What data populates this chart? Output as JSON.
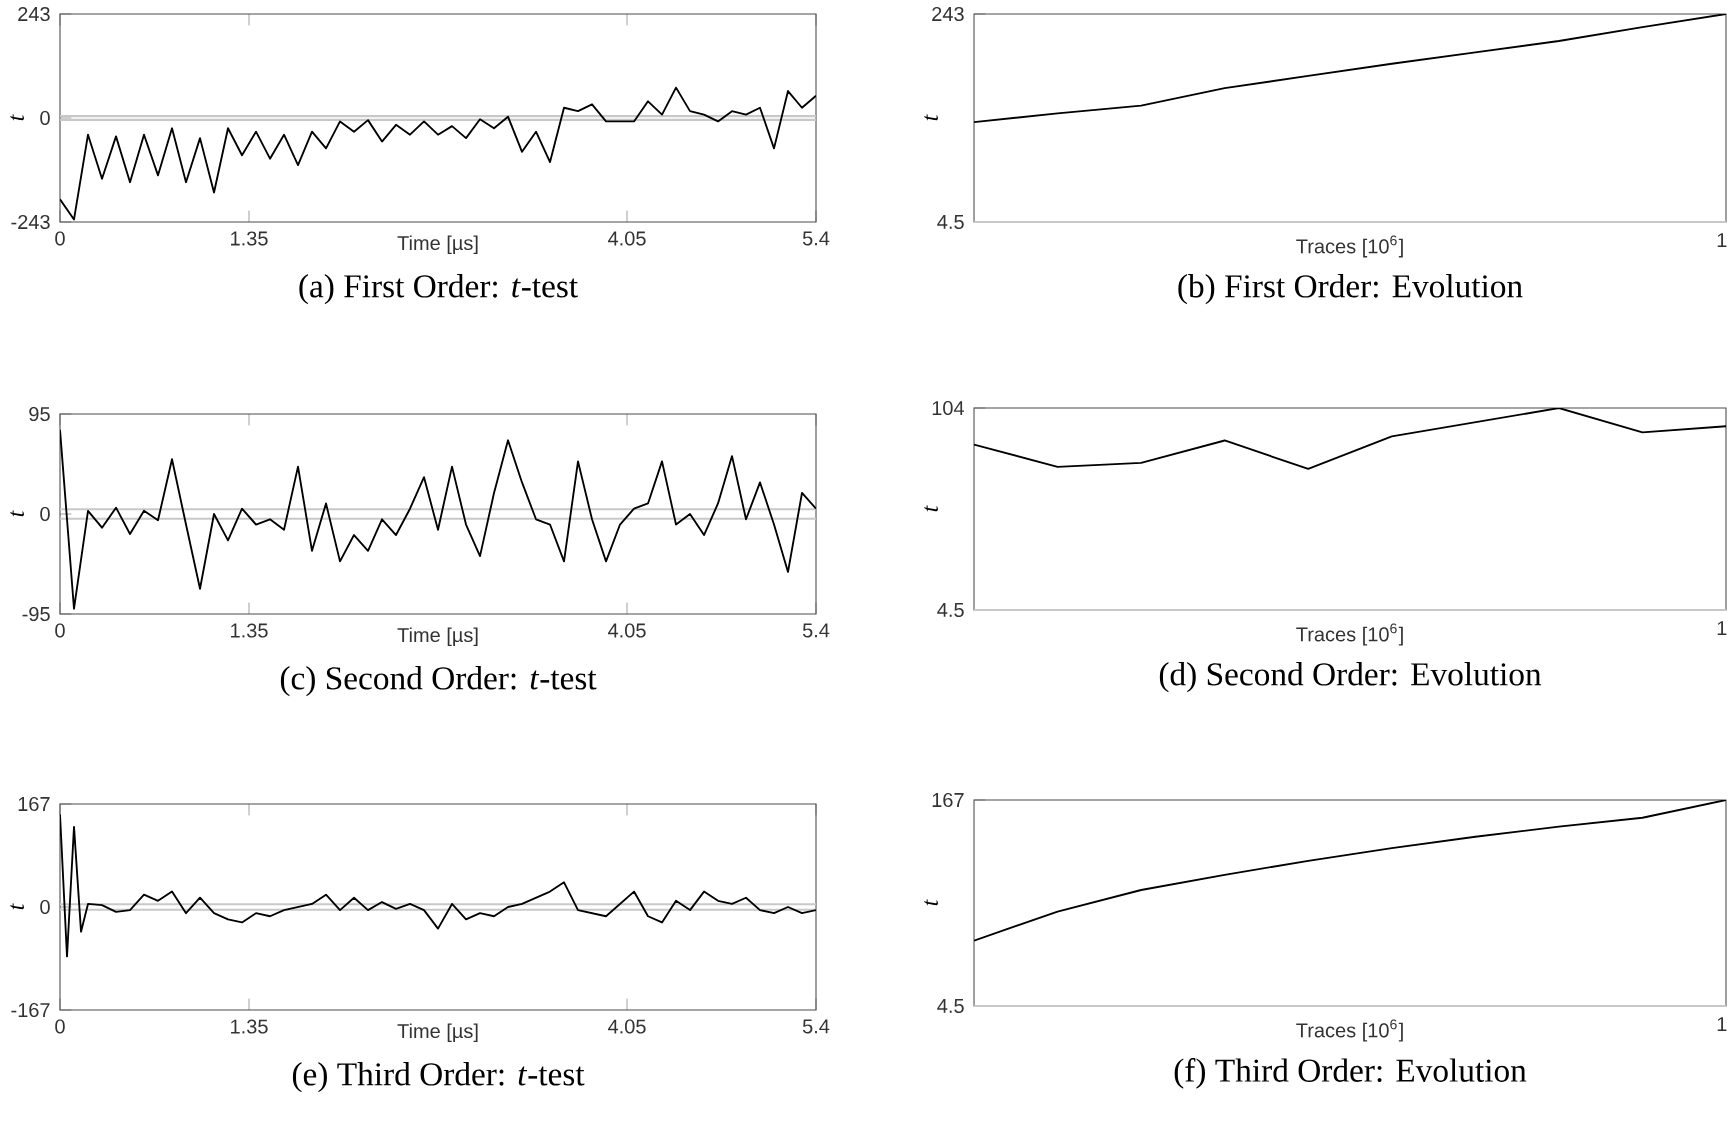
{
  "chart_data": [
    {
      "type": "line",
      "title": "(a) First Order: *t*-test",
      "xlabel": "Time [µs]",
      "ylabel": "t",
      "color": "#000000",
      "x": [
        0,
        0.1,
        0.2,
        0.3,
        0.4,
        0.5,
        0.6,
        0.7,
        0.8,
        0.9,
        1.0,
        1.1,
        1.2,
        1.3,
        1.4,
        1.5,
        1.6,
        1.7,
        1.8,
        1.9,
        2.0,
        2.1,
        2.2,
        2.3,
        2.4,
        2.5,
        2.6,
        2.7,
        2.8,
        2.9,
        3.0,
        3.1,
        3.2,
        3.3,
        3.4,
        3.5,
        3.6,
        3.7,
        3.8,
        3.9,
        4.0,
        4.1,
        4.2,
        4.3,
        4.4,
        4.5,
        4.6,
        4.7,
        4.8,
        4.9,
        5.0,
        5.1,
        5.2,
        5.3,
        5.4
      ],
      "values": [
        -190,
        -237,
        -39,
        -142,
        -43,
        -150,
        -39,
        -134,
        -24,
        -150,
        -47,
        -174,
        -24,
        -87,
        -32,
        -95,
        -39,
        -110,
        -32,
        -71,
        -8,
        -32,
        -5,
        -55,
        -16,
        -39,
        -8,
        -39,
        -19,
        -47,
        -3,
        -24,
        3,
        -79,
        -32,
        -103,
        24,
        16,
        32,
        -8,
        -8,
        -8,
        39,
        8,
        71,
        16,
        8,
        -8,
        16,
        8,
        24,
        -71,
        63,
        24,
        52
      ],
      "xlim": [
        0,
        5.4
      ],
      "ylim": [
        -243,
        243
      ],
      "xticks": [
        0,
        1.35,
        4.05,
        5.4
      ],
      "yticks": [
        -243,
        0,
        243
      ],
      "ref_lines": [
        {
          "axis": "y",
          "value": 4.5,
          "color": "#c8c8c8"
        },
        {
          "axis": "y",
          "value": -4.5,
          "color": "#c8c8c8"
        }
      ]
    },
    {
      "type": "line",
      "title": "(b) First Order: Evolution",
      "xlabel": "Traces [10$^{6}$]",
      "ylabel": "t",
      "color": "#000000",
      "categories": [
        null,
        null,
        null,
        null,
        null,
        null,
        null,
        null,
        null,
        null
      ],
      "annotations": [
        "1"
      ],
      "values": [
        119,
        129,
        138,
        158,
        172,
        186,
        199,
        212,
        228,
        243
      ],
      "ylim": [
        4.5,
        243
      ],
      "yticks": [
        4.5,
        243
      ],
      "ref_lines": [
        {
          "axis": "y",
          "value": 4.5,
          "color": "#c8c8c8"
        }
      ]
    },
    {
      "type": "line",
      "title": "(c) Second Order: *t*-test",
      "xlabel": "Time [µs]",
      "ylabel": "t",
      "color": "#000000",
      "x": [
        0,
        0.1,
        0.2,
        0.3,
        0.4,
        0.5,
        0.6,
        0.7,
        0.8,
        0.9,
        1.0,
        1.1,
        1.2,
        1.3,
        1.4,
        1.5,
        1.6,
        1.7,
        1.8,
        1.9,
        2.0,
        2.1,
        2.2,
        2.3,
        2.4,
        2.5,
        2.6,
        2.7,
        2.8,
        2.9,
        3.0,
        3.1,
        3.2,
        3.3,
        3.4,
        3.5,
        3.6,
        3.7,
        3.8,
        3.9,
        4.0,
        4.1,
        4.2,
        4.3,
        4.4,
        4.5,
        4.6,
        4.7,
        4.8,
        4.9,
        5.0,
        5.1,
        5.2,
        5.3,
        5.4
      ],
      "values": [
        80,
        -90,
        3,
        -13,
        6,
        -19,
        3,
        -6,
        52,
        -10,
        -71,
        0,
        -25,
        5,
        -10,
        -5,
        -15,
        45,
        -35,
        10,
        -45,
        -20,
        -35,
        -5,
        -20,
        5,
        35,
        -15,
        45,
        -10,
        -40,
        20,
        70,
        30,
        -5,
        -10,
        -45,
        50,
        -5,
        -45,
        -10,
        5,
        10,
        50,
        -10,
        0,
        -20,
        10,
        55,
        -5,
        30,
        -10,
        -55,
        20,
        5
      ],
      "xlim": [
        0,
        5.4
      ],
      "ylim": [
        -95,
        95
      ],
      "xticks": [
        0,
        1.35,
        4.05,
        5.4
      ],
      "yticks": [
        -95,
        0,
        95
      ],
      "ref_lines": [
        {
          "axis": "y",
          "value": 4.5,
          "color": "#c8c8c8"
        },
        {
          "axis": "y",
          "value": -4.5,
          "color": "#c8c8c8"
        }
      ]
    },
    {
      "type": "line",
      "title": "(d) Second Order: Evolution",
      "xlabel": "Traces [10$^{6}$]",
      "ylabel": "t",
      "color": "#000000",
      "categories": [
        null,
        null,
        null,
        null,
        null,
        null,
        null,
        null,
        null,
        null
      ],
      "annotations": [
        "1"
      ],
      "values": [
        86,
        75,
        77,
        88,
        74,
        90,
        97,
        104,
        92,
        95
      ],
      "ylim": [
        4.5,
        104
      ],
      "yticks": [
        4.5,
        104
      ],
      "ref_lines": [
        {
          "axis": "y",
          "value": 4.5,
          "color": "#c8c8c8"
        }
      ]
    },
    {
      "type": "line",
      "title": "(e) Third Order: *t*-test",
      "xlabel": "Time [µs]",
      "ylabel": "t",
      "color": "#000000",
      "x": [
        0,
        0.05,
        0.1,
        0.15,
        0.2,
        0.3,
        0.4,
        0.5,
        0.6,
        0.7,
        0.8,
        0.9,
        1.0,
        1.1,
        1.2,
        1.3,
        1.4,
        1.5,
        1.6,
        1.7,
        1.8,
        1.9,
        2.0,
        2.1,
        2.2,
        2.3,
        2.4,
        2.5,
        2.6,
        2.7,
        2.8,
        2.9,
        3.0,
        3.1,
        3.2,
        3.3,
        3.4,
        3.5,
        3.6,
        3.7,
        3.8,
        3.9,
        4.0,
        4.1,
        4.2,
        4.3,
        4.4,
        4.5,
        4.6,
        4.7,
        4.8,
        4.9,
        5.0,
        5.1,
        5.2,
        5.3,
        5.4
      ],
      "values": [
        150,
        -80,
        130,
        -40,
        5,
        3,
        -8,
        -5,
        20,
        10,
        25,
        -10,
        15,
        -10,
        -20,
        -25,
        -10,
        -15,
        -5,
        0,
        5,
        20,
        -5,
        15,
        -5,
        8,
        -3,
        5,
        -5,
        -35,
        5,
        -20,
        -10,
        -15,
        0,
        5,
        15,
        25,
        40,
        -5,
        -10,
        -15,
        5,
        25,
        -15,
        -25,
        10,
        -5,
        25,
        10,
        5,
        15,
        -5,
        -10,
        0,
        -10,
        -5
      ],
      "xlim": [
        0,
        5.4
      ],
      "ylim": [
        -167,
        167
      ],
      "xticks": [
        0,
        1.35,
        4.05,
        5.4
      ],
      "yticks": [
        -167,
        0,
        167
      ],
      "ref_lines": [
        {
          "axis": "y",
          "value": 4.5,
          "color": "#c8c8c8"
        },
        {
          "axis": "y",
          "value": -4.5,
          "color": "#c8c8c8"
        }
      ]
    },
    {
      "type": "line",
      "title": "(f) Third Order: Evolution",
      "xlabel": "Traces [10$^{6}$]",
      "ylabel": "t",
      "color": "#000000",
      "categories": [
        null,
        null,
        null,
        null,
        null,
        null,
        null,
        null,
        null,
        null
      ],
      "annotations": [
        "1"
      ],
      "values": [
        56,
        79,
        96,
        108,
        119,
        129,
        138,
        146,
        153,
        167
      ],
      "ylim": [
        4.5,
        167
      ],
      "yticks": [
        4.5,
        167
      ],
      "ref_lines": [
        {
          "axis": "y",
          "value": 4.5,
          "color": "#c8c8c8"
        }
      ]
    }
  ]
}
